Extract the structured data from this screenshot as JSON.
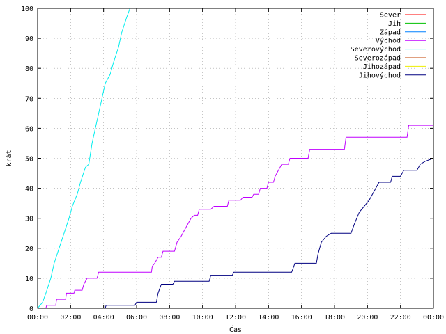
{
  "chart_data": {
    "type": "line",
    "title": "",
    "xlabel": "Čas",
    "ylabel": "krát",
    "xlim": [
      0,
      24
    ],
    "ylim": [
      0,
      100
    ],
    "x_ticks": [
      {
        "value": 0,
        "label": "00:00"
      },
      {
        "value": 2,
        "label": "02:00"
      },
      {
        "value": 4,
        "label": "04:00"
      },
      {
        "value": 6,
        "label": "06:00"
      },
      {
        "value": 8,
        "label": "08:00"
      },
      {
        "value": 10,
        "label": "10:00"
      },
      {
        "value": 12,
        "label": "12:00"
      },
      {
        "value": 14,
        "label": "14:00"
      },
      {
        "value": 16,
        "label": "16:00"
      },
      {
        "value": 18,
        "label": "18:00"
      },
      {
        "value": 20,
        "label": "20:00"
      },
      {
        "value": 22,
        "label": "22:00"
      },
      {
        "value": 24,
        "label": "00:00"
      }
    ],
    "y_ticks": [
      0,
      10,
      20,
      30,
      40,
      50,
      60,
      70,
      80,
      90,
      100
    ],
    "legend_position": "top-right",
    "series": [
      {
        "name": "Sever",
        "color": "#ff0000",
        "points": []
      },
      {
        "name": "Jih",
        "color": "#00c000",
        "points": []
      },
      {
        "name": "Západ",
        "color": "#0080ff",
        "points": []
      },
      {
        "name": "Východ",
        "color": "#c000ff",
        "points": [
          [
            0,
            0
          ],
          [
            0.5,
            0
          ],
          [
            0.55,
            1
          ],
          [
            1.1,
            1
          ],
          [
            1.15,
            3
          ],
          [
            1.7,
            3
          ],
          [
            1.75,
            5
          ],
          [
            2.2,
            5
          ],
          [
            2.25,
            6
          ],
          [
            2.7,
            6
          ],
          [
            2.8,
            8
          ],
          [
            3.0,
            10
          ],
          [
            3.6,
            10
          ],
          [
            3.7,
            12
          ],
          [
            6.9,
            12
          ],
          [
            6.95,
            14
          ],
          [
            7.1,
            15
          ],
          [
            7.3,
            17
          ],
          [
            7.5,
            17
          ],
          [
            7.6,
            19
          ],
          [
            8.3,
            19
          ],
          [
            8.45,
            22
          ],
          [
            8.7,
            24
          ],
          [
            8.9,
            26
          ],
          [
            9.1,
            28
          ],
          [
            9.3,
            30
          ],
          [
            9.5,
            31
          ],
          [
            9.7,
            31
          ],
          [
            9.8,
            33
          ],
          [
            10.5,
            33
          ],
          [
            10.7,
            34
          ],
          [
            11.5,
            34
          ],
          [
            11.6,
            36
          ],
          [
            12.3,
            36
          ],
          [
            12.45,
            37
          ],
          [
            13.0,
            37
          ],
          [
            13.1,
            38
          ],
          [
            13.4,
            38
          ],
          [
            13.5,
            40
          ],
          [
            13.9,
            40
          ],
          [
            14.0,
            42
          ],
          [
            14.3,
            42
          ],
          [
            14.4,
            44
          ],
          [
            14.6,
            46
          ],
          [
            14.8,
            48
          ],
          [
            15.2,
            48
          ],
          [
            15.3,
            50
          ],
          [
            16.4,
            50
          ],
          [
            16.5,
            53
          ],
          [
            18.6,
            53
          ],
          [
            18.7,
            57
          ],
          [
            22.4,
            57
          ],
          [
            22.5,
            61
          ],
          [
            24,
            61
          ]
        ]
      },
      {
        "name": "Severovýchod",
        "color": "#00eeee",
        "points": [
          [
            0,
            0
          ],
          [
            0.3,
            2
          ],
          [
            0.5,
            5
          ],
          [
            0.8,
            10
          ],
          [
            1.0,
            15
          ],
          [
            1.3,
            20
          ],
          [
            1.6,
            25
          ],
          [
            1.9,
            30
          ],
          [
            2.1,
            34
          ],
          [
            2.4,
            38
          ],
          [
            2.6,
            42
          ],
          [
            2.9,
            47
          ],
          [
            3.1,
            48
          ],
          [
            3.3,
            55
          ],
          [
            3.5,
            60
          ],
          [
            3.7,
            65
          ],
          [
            3.9,
            70
          ],
          [
            4.1,
            75
          ],
          [
            4.4,
            78
          ],
          [
            4.6,
            82
          ],
          [
            4.9,
            87
          ],
          [
            5.1,
            92
          ],
          [
            5.4,
            97
          ],
          [
            5.6,
            100
          ]
        ]
      },
      {
        "name": "Severozápad",
        "color": "#c04000",
        "points": []
      },
      {
        "name": "Jihozápad",
        "color": "#eeee00",
        "points": []
      },
      {
        "name": "Jihovýchod",
        "color": "#000080",
        "points": [
          [
            0,
            0
          ],
          [
            4.1,
            0
          ],
          [
            4.15,
            1
          ],
          [
            5.9,
            1
          ],
          [
            6.0,
            2
          ],
          [
            7.2,
            2
          ],
          [
            7.3,
            5
          ],
          [
            7.5,
            8
          ],
          [
            8.2,
            8
          ],
          [
            8.3,
            9
          ],
          [
            10.4,
            9
          ],
          [
            10.5,
            11
          ],
          [
            11.8,
            11
          ],
          [
            11.9,
            12
          ],
          [
            15.4,
            12
          ],
          [
            15.6,
            15
          ],
          [
            16.9,
            15
          ],
          [
            17.0,
            18
          ],
          [
            17.2,
            22
          ],
          [
            17.5,
            24
          ],
          [
            17.8,
            25
          ],
          [
            19.0,
            25
          ],
          [
            19.2,
            28
          ],
          [
            19.5,
            32
          ],
          [
            19.8,
            34
          ],
          [
            20.1,
            36
          ],
          [
            20.3,
            38
          ],
          [
            20.5,
            40
          ],
          [
            20.7,
            42
          ],
          [
            21.4,
            42
          ],
          [
            21.5,
            44
          ],
          [
            22.0,
            44
          ],
          [
            22.2,
            46
          ],
          [
            23.0,
            46
          ],
          [
            23.2,
            48
          ],
          [
            23.5,
            49
          ],
          [
            24,
            50
          ]
        ]
      }
    ]
  }
}
